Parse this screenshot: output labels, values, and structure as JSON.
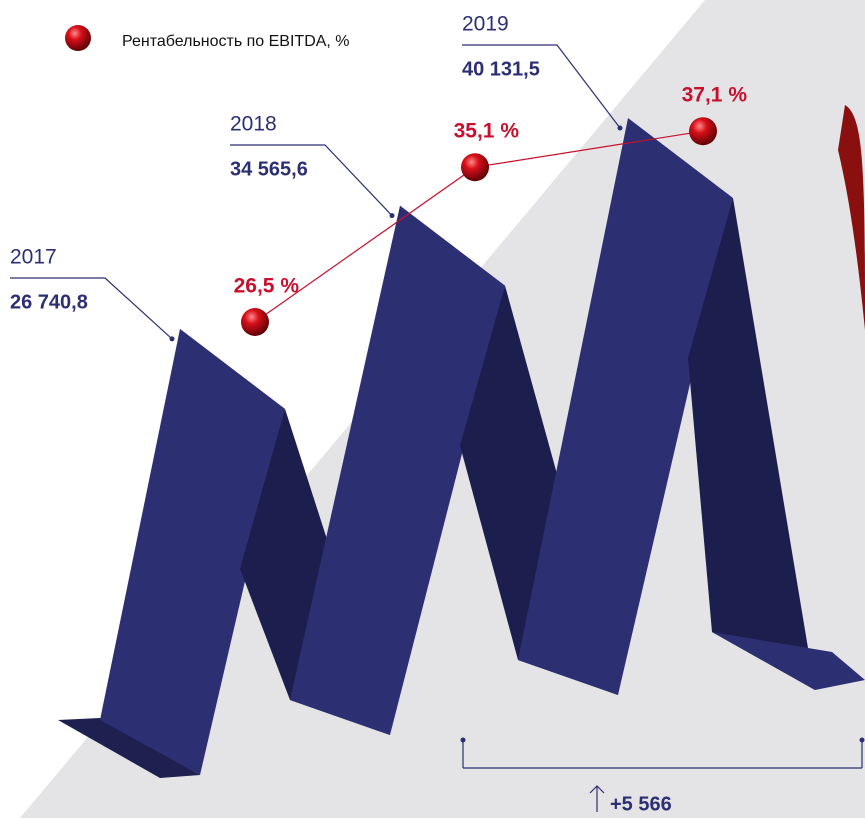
{
  "chart_data": {
    "type": "zigzag",
    "categories": [
      "2017",
      "2018",
      "2019"
    ],
    "series": [
      {
        "name": "EBITDA",
        "color": "#2d2f73",
        "values": [
          26740.8,
          34565.6,
          40131.5
        ],
        "value_labels": [
          "26 740,8",
          "34 565,6",
          "40 131,5"
        ]
      },
      {
        "name": "Рентабельность по EBITDA, %",
        "color": "#c8102e",
        "values": [
          26.5,
          35.1,
          37.1
        ],
        "value_labels": [
          "26,5 %",
          "35,1 %",
          "37,1 %"
        ]
      }
    ],
    "annotation": "+5 566"
  }
}
